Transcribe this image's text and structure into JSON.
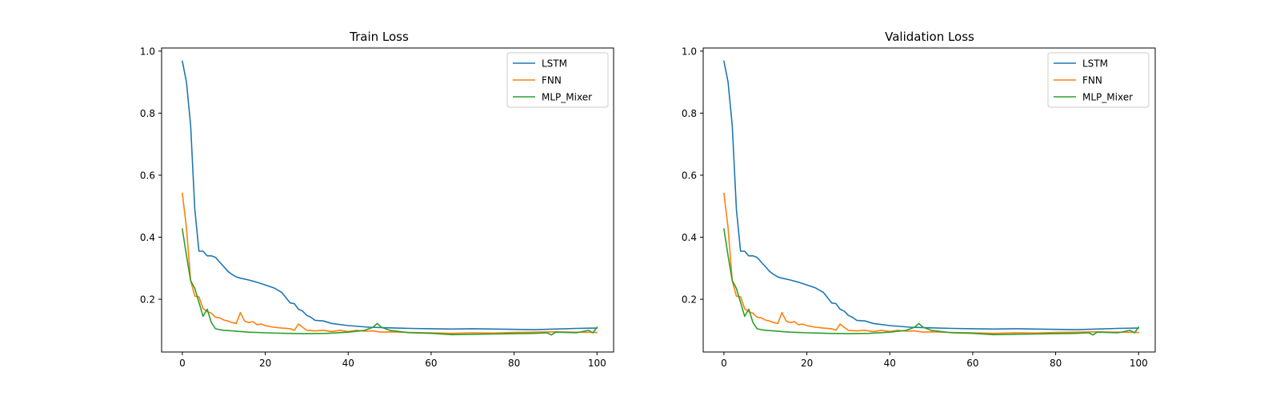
{
  "chart_data": [
    {
      "type": "line",
      "title": "Train Loss",
      "xlabel": "",
      "ylabel": "",
      "xlim": [
        -5,
        104
      ],
      "ylim": [
        0.03,
        1.01
      ],
      "xticks": [
        0,
        20,
        40,
        60,
        80,
        100
      ],
      "xtick_labels": [
        "0",
        "20",
        "40",
        "60",
        "80",
        "100"
      ],
      "yticks": [
        0.2,
        0.4,
        0.6,
        0.8,
        1.0
      ],
      "ytick_labels": [
        "0.2",
        "0.4",
        "0.6",
        "0.8",
        "1.0"
      ],
      "grid": false,
      "legend_position": "top-right",
      "series": [
        {
          "name": "LSTM",
          "color": "#1f77b4",
          "x": [
            0,
            1,
            2,
            3,
            4,
            5,
            6,
            7,
            8,
            9,
            10,
            11,
            12,
            13,
            14,
            16,
            18,
            20,
            22,
            24,
            25,
            26,
            27,
            28,
            29,
            30,
            31,
            32,
            34,
            36,
            40,
            45,
            50,
            55,
            60,
            65,
            70,
            75,
            80,
            85,
            90,
            95,
            100
          ],
          "y": [
            0.968,
            0.9,
            0.76,
            0.49,
            0.355,
            0.355,
            0.34,
            0.34,
            0.335,
            0.32,
            0.305,
            0.29,
            0.28,
            0.272,
            0.268,
            0.262,
            0.255,
            0.246,
            0.237,
            0.222,
            0.205,
            0.188,
            0.186,
            0.168,
            0.162,
            0.148,
            0.142,
            0.132,
            0.13,
            0.122,
            0.115,
            0.11,
            0.108,
            0.106,
            0.105,
            0.104,
            0.105,
            0.104,
            0.103,
            0.102,
            0.104,
            0.106,
            0.107
          ]
        },
        {
          "name": "FNN",
          "color": "#ff7f0e",
          "x": [
            0,
            1,
            2,
            3,
            4,
            5,
            6,
            7,
            8,
            9,
            10,
            11,
            12,
            13,
            14,
            15,
            16,
            17,
            18,
            19,
            20,
            22,
            24,
            26,
            27,
            28,
            29,
            30,
            32,
            34,
            36,
            38,
            40,
            42,
            44,
            46,
            48,
            50,
            55,
            60,
            65,
            70,
            75,
            80,
            85,
            90,
            95,
            100
          ],
          "y": [
            0.542,
            0.43,
            0.26,
            0.21,
            0.208,
            0.17,
            0.16,
            0.155,
            0.142,
            0.14,
            0.133,
            0.13,
            0.125,
            0.122,
            0.157,
            0.13,
            0.125,
            0.128,
            0.118,
            0.12,
            0.115,
            0.11,
            0.107,
            0.105,
            0.1,
            0.12,
            0.11,
            0.1,
            0.098,
            0.1,
            0.096,
            0.1,
            0.096,
            0.1,
            0.097,
            0.098,
            0.094,
            0.095,
            0.093,
            0.092,
            0.09,
            0.092,
            0.091,
            0.093,
            0.094,
            0.095,
            0.094,
            0.093
          ]
        },
        {
          "name": "MLP_Mixer",
          "color": "#2ca02c",
          "x": [
            0,
            1,
            2,
            3,
            4,
            5,
            6,
            7,
            8,
            9,
            10,
            12,
            14,
            16,
            18,
            20,
            25,
            30,
            35,
            40,
            44,
            46,
            47,
            48,
            50,
            55,
            60,
            65,
            70,
            75,
            80,
            85,
            88,
            89,
            90,
            95,
            98,
            99,
            100
          ],
          "y": [
            0.427,
            0.34,
            0.26,
            0.235,
            0.19,
            0.145,
            0.168,
            0.125,
            0.105,
            0.102,
            0.1,
            0.098,
            0.096,
            0.094,
            0.093,
            0.092,
            0.09,
            0.089,
            0.09,
            0.094,
            0.1,
            0.11,
            0.122,
            0.11,
            0.1,
            0.092,
            0.09,
            0.086,
            0.087,
            0.088,
            0.089,
            0.09,
            0.092,
            0.085,
            0.094,
            0.092,
            0.1,
            0.092,
            0.11
          ]
        }
      ]
    },
    {
      "type": "line",
      "title": "Validation Loss",
      "xlabel": "",
      "ylabel": "",
      "xlim": [
        -5,
        104
      ],
      "ylim": [
        0.03,
        1.01
      ],
      "xticks": [
        0,
        20,
        40,
        60,
        80,
        100
      ],
      "xtick_labels": [
        "0",
        "20",
        "40",
        "60",
        "80",
        "100"
      ],
      "yticks": [
        0.2,
        0.4,
        0.6,
        0.8,
        1.0
      ],
      "ytick_labels": [
        "0.2",
        "0.4",
        "0.6",
        "0.8",
        "1.0"
      ],
      "grid": false,
      "legend_position": "top-right",
      "series": [
        {
          "name": "LSTM",
          "color": "#1f77b4",
          "x": [
            0,
            1,
            2,
            3,
            4,
            5,
            6,
            7,
            8,
            9,
            10,
            11,
            12,
            13,
            14,
            16,
            18,
            20,
            22,
            24,
            25,
            26,
            27,
            28,
            29,
            30,
            31,
            32,
            34,
            36,
            40,
            45,
            50,
            55,
            60,
            65,
            70,
            75,
            80,
            85,
            90,
            95,
            100
          ],
          "y": [
            0.968,
            0.9,
            0.76,
            0.49,
            0.355,
            0.355,
            0.34,
            0.34,
            0.335,
            0.32,
            0.305,
            0.29,
            0.28,
            0.272,
            0.268,
            0.262,
            0.255,
            0.246,
            0.237,
            0.222,
            0.205,
            0.188,
            0.186,
            0.168,
            0.162,
            0.148,
            0.142,
            0.132,
            0.13,
            0.122,
            0.115,
            0.11,
            0.108,
            0.106,
            0.105,
            0.104,
            0.105,
            0.104,
            0.103,
            0.102,
            0.104,
            0.106,
            0.107
          ]
        },
        {
          "name": "FNN",
          "color": "#ff7f0e",
          "x": [
            0,
            1,
            2,
            3,
            4,
            5,
            6,
            7,
            8,
            9,
            10,
            11,
            12,
            13,
            14,
            15,
            16,
            17,
            18,
            19,
            20,
            22,
            24,
            26,
            27,
            28,
            29,
            30,
            32,
            34,
            36,
            38,
            40,
            42,
            44,
            46,
            48,
            50,
            55,
            60,
            65,
            70,
            75,
            80,
            85,
            90,
            95,
            100
          ],
          "y": [
            0.542,
            0.43,
            0.26,
            0.21,
            0.208,
            0.17,
            0.16,
            0.155,
            0.142,
            0.14,
            0.133,
            0.13,
            0.125,
            0.122,
            0.157,
            0.13,
            0.125,
            0.128,
            0.118,
            0.12,
            0.115,
            0.11,
            0.107,
            0.105,
            0.1,
            0.12,
            0.11,
            0.1,
            0.098,
            0.1,
            0.096,
            0.1,
            0.096,
            0.1,
            0.097,
            0.098,
            0.094,
            0.095,
            0.093,
            0.092,
            0.09,
            0.092,
            0.091,
            0.093,
            0.094,
            0.095,
            0.094,
            0.093
          ]
        },
        {
          "name": "MLP_Mixer",
          "color": "#2ca02c",
          "x": [
            0,
            1,
            2,
            3,
            4,
            5,
            6,
            7,
            8,
            9,
            10,
            12,
            14,
            16,
            18,
            20,
            25,
            30,
            35,
            40,
            44,
            46,
            47,
            48,
            50,
            55,
            60,
            65,
            70,
            75,
            80,
            85,
            88,
            89,
            90,
            95,
            98,
            99,
            100
          ],
          "y": [
            0.427,
            0.34,
            0.26,
            0.235,
            0.19,
            0.145,
            0.168,
            0.125,
            0.105,
            0.102,
            0.1,
            0.098,
            0.096,
            0.094,
            0.093,
            0.092,
            0.09,
            0.089,
            0.09,
            0.094,
            0.1,
            0.11,
            0.122,
            0.11,
            0.1,
            0.092,
            0.09,
            0.086,
            0.087,
            0.088,
            0.089,
            0.09,
            0.092,
            0.085,
            0.094,
            0.092,
            0.1,
            0.092,
            0.11
          ]
        }
      ]
    }
  ]
}
